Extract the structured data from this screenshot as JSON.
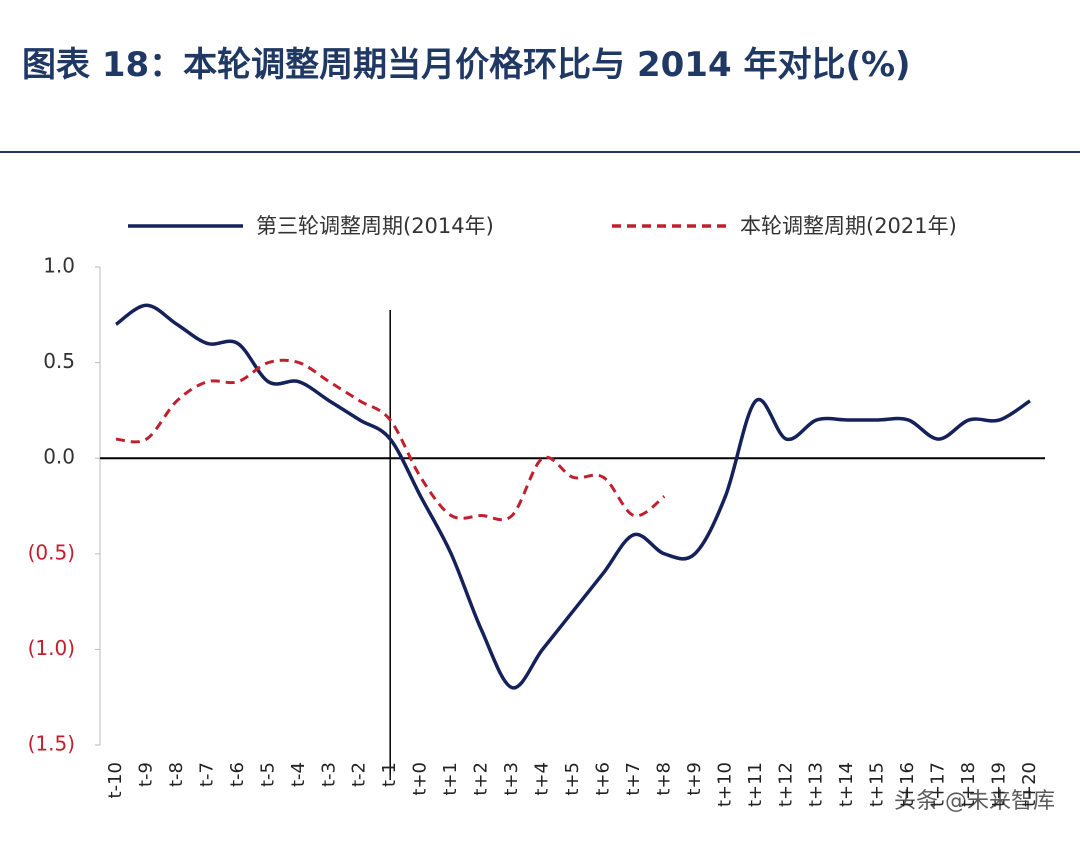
{
  "chart_data": {
    "type": "line",
    "title": "图表 18：本轮调整周期当月价格环比与 2014 年对比(%)",
    "categories": [
      "t-10",
      "t-9",
      "t-8",
      "t-7",
      "t-6",
      "t-5",
      "t-4",
      "t-3",
      "t-2",
      "t-1",
      "t+0",
      "t+1",
      "t+2",
      "t+3",
      "t+4",
      "t+5",
      "t+6",
      "t+7",
      "t+8",
      "t+9",
      "t+10",
      "t+11",
      "t+12",
      "t+13",
      "t+14",
      "t+15",
      "t+16",
      "t+17",
      "t+18",
      "t+19",
      "t+20"
    ],
    "series": [
      {
        "name": "第三轮调整周期(2014年)",
        "color": "#14215a",
        "dash": false,
        "values": [
          0.7,
          0.8,
          0.7,
          0.6,
          0.6,
          0.4,
          0.4,
          0.3,
          0.2,
          0.1,
          -0.2,
          -0.5,
          -0.9,
          -1.2,
          -1.0,
          -0.8,
          -0.6,
          -0.4,
          -0.5,
          -0.5,
          -0.2,
          0.3,
          0.1,
          0.2,
          0.2,
          0.2,
          0.2,
          0.1,
          0.2,
          0.2,
          0.3
        ]
      },
      {
        "name": "本轮调整周期(2021年)",
        "color": "#c0202e",
        "dash": true,
        "values": [
          0.1,
          0.1,
          0.3,
          0.4,
          0.4,
          0.5,
          0.5,
          0.4,
          0.3,
          0.2,
          -0.1,
          -0.3,
          -0.3,
          -0.3,
          0.0,
          -0.1,
          -0.1,
          -0.3,
          -0.2,
          null,
          null,
          null,
          null,
          null,
          null,
          null,
          null,
          null,
          null,
          null,
          null
        ]
      }
    ],
    "ylim": [
      -1.5,
      1.0
    ],
    "yticks": [
      {
        "value": 1.0,
        "label": "1.0"
      },
      {
        "value": 0.5,
        "label": "0.5"
      },
      {
        "value": 0.0,
        "label": "0.0"
      },
      {
        "value": -0.5,
        "label": "(0.5)"
      },
      {
        "value": -1.0,
        "label": "(1.0)"
      },
      {
        "value": -1.5,
        "label": "(1.5)"
      }
    ],
    "vline": "t-1",
    "watermark": "头条 @未来智库"
  }
}
